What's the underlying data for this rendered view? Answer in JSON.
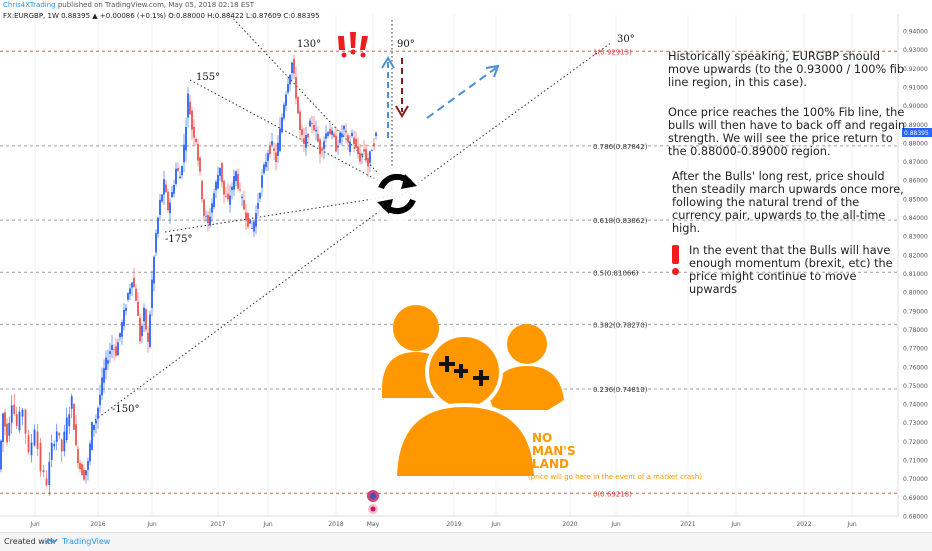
{
  "header": {
    "author": "Chris4XTrading",
    "published": "published on TradingView.com, May 05, 2018 02:18 EST",
    "symbol_line": "FX:EURGBP, 1W  0.88395 ▲ +0.00086 (+0.1%)  O:0.88000  H:0.88422  L:0.87609  C:0.88395"
  },
  "footer": {
    "created_with": "Created with",
    "brand": "TradingView"
  },
  "notes": {
    "n1": "Historically speaking, EURGBP should move upwards (to the 0.93000 / 100% fib line region, in this case).",
    "n2": "Once price reaches the 100% Fib line, the bulls will then have to back off and regain strength. We will see the price return to the 0.88000-0.89000 region.",
    "n3": "After the Bulls' long rest, price should then steadily march upwards once more, following the natural trend of the currency pair, upwards to the all-time high.",
    "n4": "In the event that the Bulls will have enough momentum (brexit, etc) the price might continue to move upwards"
  },
  "no_mans_land": {
    "l1": "NO",
    "l2": "MAN'S",
    "l3": "LAND",
    "sub": "(price will go here in the event of a market crash)"
  },
  "colors": {
    "up": "#2962ff",
    "down": "#ef5350",
    "fib_red": "#ef5350",
    "orange": "#ff9800",
    "arrow_blue": "#4a90d9",
    "arrow_red": "#8b1a1a"
  },
  "chart_data": {
    "type": "candlestick",
    "ylim": [
      0.68,
      0.94
    ],
    "y_ticks": [
      "0.94000",
      "0.93000",
      "0.92000",
      "0.91000",
      "0.90000",
      "0.89000",
      "0.88000",
      "0.87000",
      "0.86000",
      "0.85000",
      "0.84000",
      "0.83000",
      "0.82000",
      "0.81000",
      "0.80000",
      "0.79000",
      "0.78000",
      "0.77000",
      "0.76000",
      "0.75000",
      "0.74000",
      "0.73000",
      "0.72000",
      "0.71000",
      "0.70000",
      "0.69000",
      "0.68000"
    ],
    "x_ticks": [
      "Jun",
      "2016",
      "Jun",
      "2017",
      "Jun",
      "2018",
      "May",
      "2019",
      "Jun",
      "2020",
      "Jun",
      "2021",
      "Jun",
      "2022",
      "Jun"
    ],
    "last_price": "0.88395",
    "fib_levels": [
      {
        "label": "1(0.92913)",
        "value": 0.92913,
        "color": "red"
      },
      {
        "label": "0.786(0.87842)",
        "value": 0.87842,
        "color": "gray"
      },
      {
        "label": "0.618(0.83862)",
        "value": 0.83862,
        "color": "gray"
      },
      {
        "label": "0.5(0.81066)",
        "value": 0.81066,
        "color": "gray"
      },
      {
        "label": "0.382(0.78270)",
        "value": 0.7827,
        "color": "gray"
      },
      {
        "label": "0.236(0.74810)",
        "value": 0.7481,
        "color": "gray"
      },
      {
        "label": "0(0.69218)",
        "value": 0.69218,
        "color": "red"
      }
    ],
    "angle_labels": [
      "130°",
      "155°",
      "-175°",
      "-150°",
      "90°",
      "30°"
    ],
    "price_path": [
      [
        0,
        0.705
      ],
      [
        4,
        0.735
      ],
      [
        8,
        0.722
      ],
      [
        13,
        0.742
      ],
      [
        18,
        0.728
      ],
      [
        24,
        0.738
      ],
      [
        30,
        0.712
      ],
      [
        36,
        0.728
      ],
      [
        42,
        0.705
      ],
      [
        48,
        0.698
      ],
      [
        53,
        0.717
      ],
      [
        58,
        0.726
      ],
      [
        63,
        0.715
      ],
      [
        68,
        0.731
      ],
      [
        73,
        0.742
      ],
      [
        77,
        0.716
      ],
      [
        81,
        0.706
      ],
      [
        85,
        0.702
      ],
      [
        89,
        0.708
      ],
      [
        93,
        0.728
      ],
      [
        97,
        0.732
      ],
      [
        101,
        0.745
      ],
      [
        105,
        0.758
      ],
      [
        109,
        0.766
      ],
      [
        113,
        0.772
      ],
      [
        117,
        0.768
      ],
      [
        121,
        0.778
      ],
      [
        125,
        0.788
      ],
      [
        129,
        0.799
      ],
      [
        133,
        0.808
      ],
      [
        137,
        0.797
      ],
      [
        141,
        0.775
      ],
      [
        145,
        0.789
      ],
      [
        149,
        0.772
      ],
      [
        153,
        0.806
      ],
      [
        157,
        0.831
      ],
      [
        161,
        0.848
      ],
      [
        165,
        0.858
      ],
      [
        169,
        0.845
      ],
      [
        173,
        0.853
      ],
      [
        177,
        0.866
      ],
      [
        181,
        0.862
      ],
      [
        185,
        0.878
      ],
      [
        189,
        0.905
      ],
      [
        193,
        0.888
      ],
      [
        197,
        0.882
      ],
      [
        201,
        0.862
      ],
      [
        205,
        0.842
      ],
      [
        209,
        0.836
      ],
      [
        213,
        0.848
      ],
      [
        217,
        0.858
      ],
      [
        221,
        0.868
      ],
      [
        225,
        0.852
      ],
      [
        229,
        0.848
      ],
      [
        233,
        0.857
      ],
      [
        237,
        0.864
      ],
      [
        241,
        0.852
      ],
      [
        245,
        0.845
      ],
      [
        249,
        0.838
      ],
      [
        253,
        0.834
      ],
      [
        257,
        0.842
      ],
      [
        261,
        0.856
      ],
      [
        265,
        0.866
      ],
      [
        269,
        0.876
      ],
      [
        273,
        0.878
      ],
      [
        277,
        0.871
      ],
      [
        281,
        0.886
      ],
      [
        285,
        0.902
      ],
      [
        289,
        0.914
      ],
      [
        293,
        0.923
      ],
      [
        297,
        0.906
      ],
      [
        301,
        0.886
      ],
      [
        305,
        0.878
      ],
      [
        309,
        0.886
      ],
      [
        313,
        0.892
      ],
      [
        317,
        0.885
      ],
      [
        321,
        0.876
      ],
      [
        325,
        0.882
      ],
      [
        329,
        0.888
      ],
      [
        333,
        0.884
      ],
      [
        337,
        0.878
      ],
      [
        341,
        0.883
      ],
      [
        345,
        0.888
      ],
      [
        349,
        0.878
      ],
      [
        353,
        0.885
      ],
      [
        357,
        0.876
      ],
      [
        361,
        0.872
      ],
      [
        365,
        0.876
      ],
      [
        369,
        0.868
      ],
      [
        373,
        0.878
      ],
      [
        377,
        0.884
      ]
    ]
  }
}
